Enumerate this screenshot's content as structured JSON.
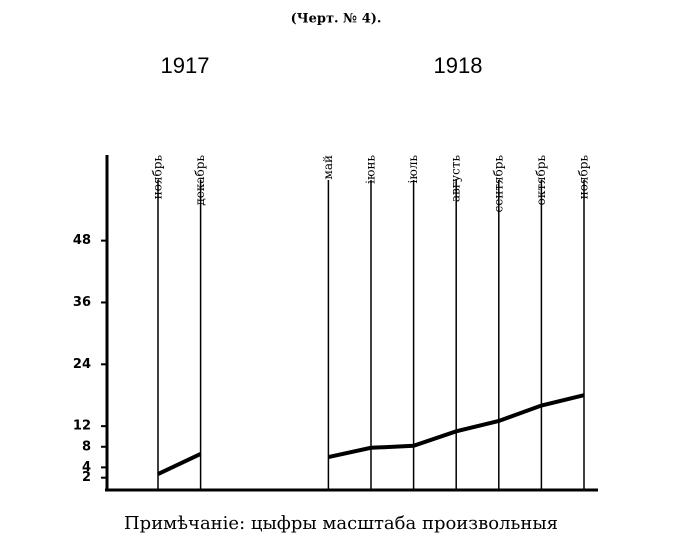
{
  "chart_data": {
    "type": "line",
    "title": "(Черт. № 4).",
    "year_labels": [
      "1917",
      "1918"
    ],
    "categories": [
      "ноябрь",
      "декабрь",
      null,
      null,
      "май",
      "іюнь",
      "іюль",
      "августь",
      "сентябрь",
      "октябрь",
      "ноябрь"
    ],
    "series": [
      {
        "color": "#000000",
        "values": [
          2.7,
          6.6,
          null,
          null,
          6,
          7.8,
          8.2,
          11,
          13,
          16,
          18
        ]
      }
    ],
    "ylim": [
      0,
      65
    ],
    "yticks": [
      2,
      4,
      8,
      12,
      24,
      36,
      48
    ],
    "note": "Примѣчаніе: цыфры масштаба произвольныя"
  }
}
